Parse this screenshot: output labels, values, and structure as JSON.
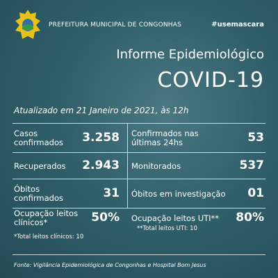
{
  "header": {
    "organization": "PREFEITURA MUNICIPAL DE CONGONHAS",
    "hashtag": "#usemascara"
  },
  "title": "Informe Epidemiológico",
  "subtitle": "COVID-19",
  "updated": "Atualizado em 21 Janeiro de 2021, às 12h",
  "cells": [
    {
      "label": [
        "Casos",
        "confirmados"
      ],
      "value": "3.258"
    },
    {
      "label": [
        "Confirmados nas",
        "últimas 24hs"
      ],
      "value": "53"
    },
    {
      "label": [
        "Recuperados"
      ],
      "value": "2.943"
    },
    {
      "label": [
        "Monitorados"
      ],
      "value": "537"
    },
    {
      "label": [
        "Óbitos",
        "confirmados"
      ],
      "value": "31"
    },
    {
      "label": [
        "Óbitos em investigação"
      ],
      "value": "01"
    },
    {
      "label": [
        "Ocupação leitos",
        "clínicos*"
      ],
      "value": "50%",
      "note": "*Total leitos clínicos: 10"
    },
    {
      "label": [
        "Ocupação leitos UTI**"
      ],
      "value": "80%",
      "note": "**Total leitos UTI: 10"
    }
  ],
  "source": "Fonte: Vigilância Epidemiológica de Congonhas e Hospital Bom Jesus"
}
